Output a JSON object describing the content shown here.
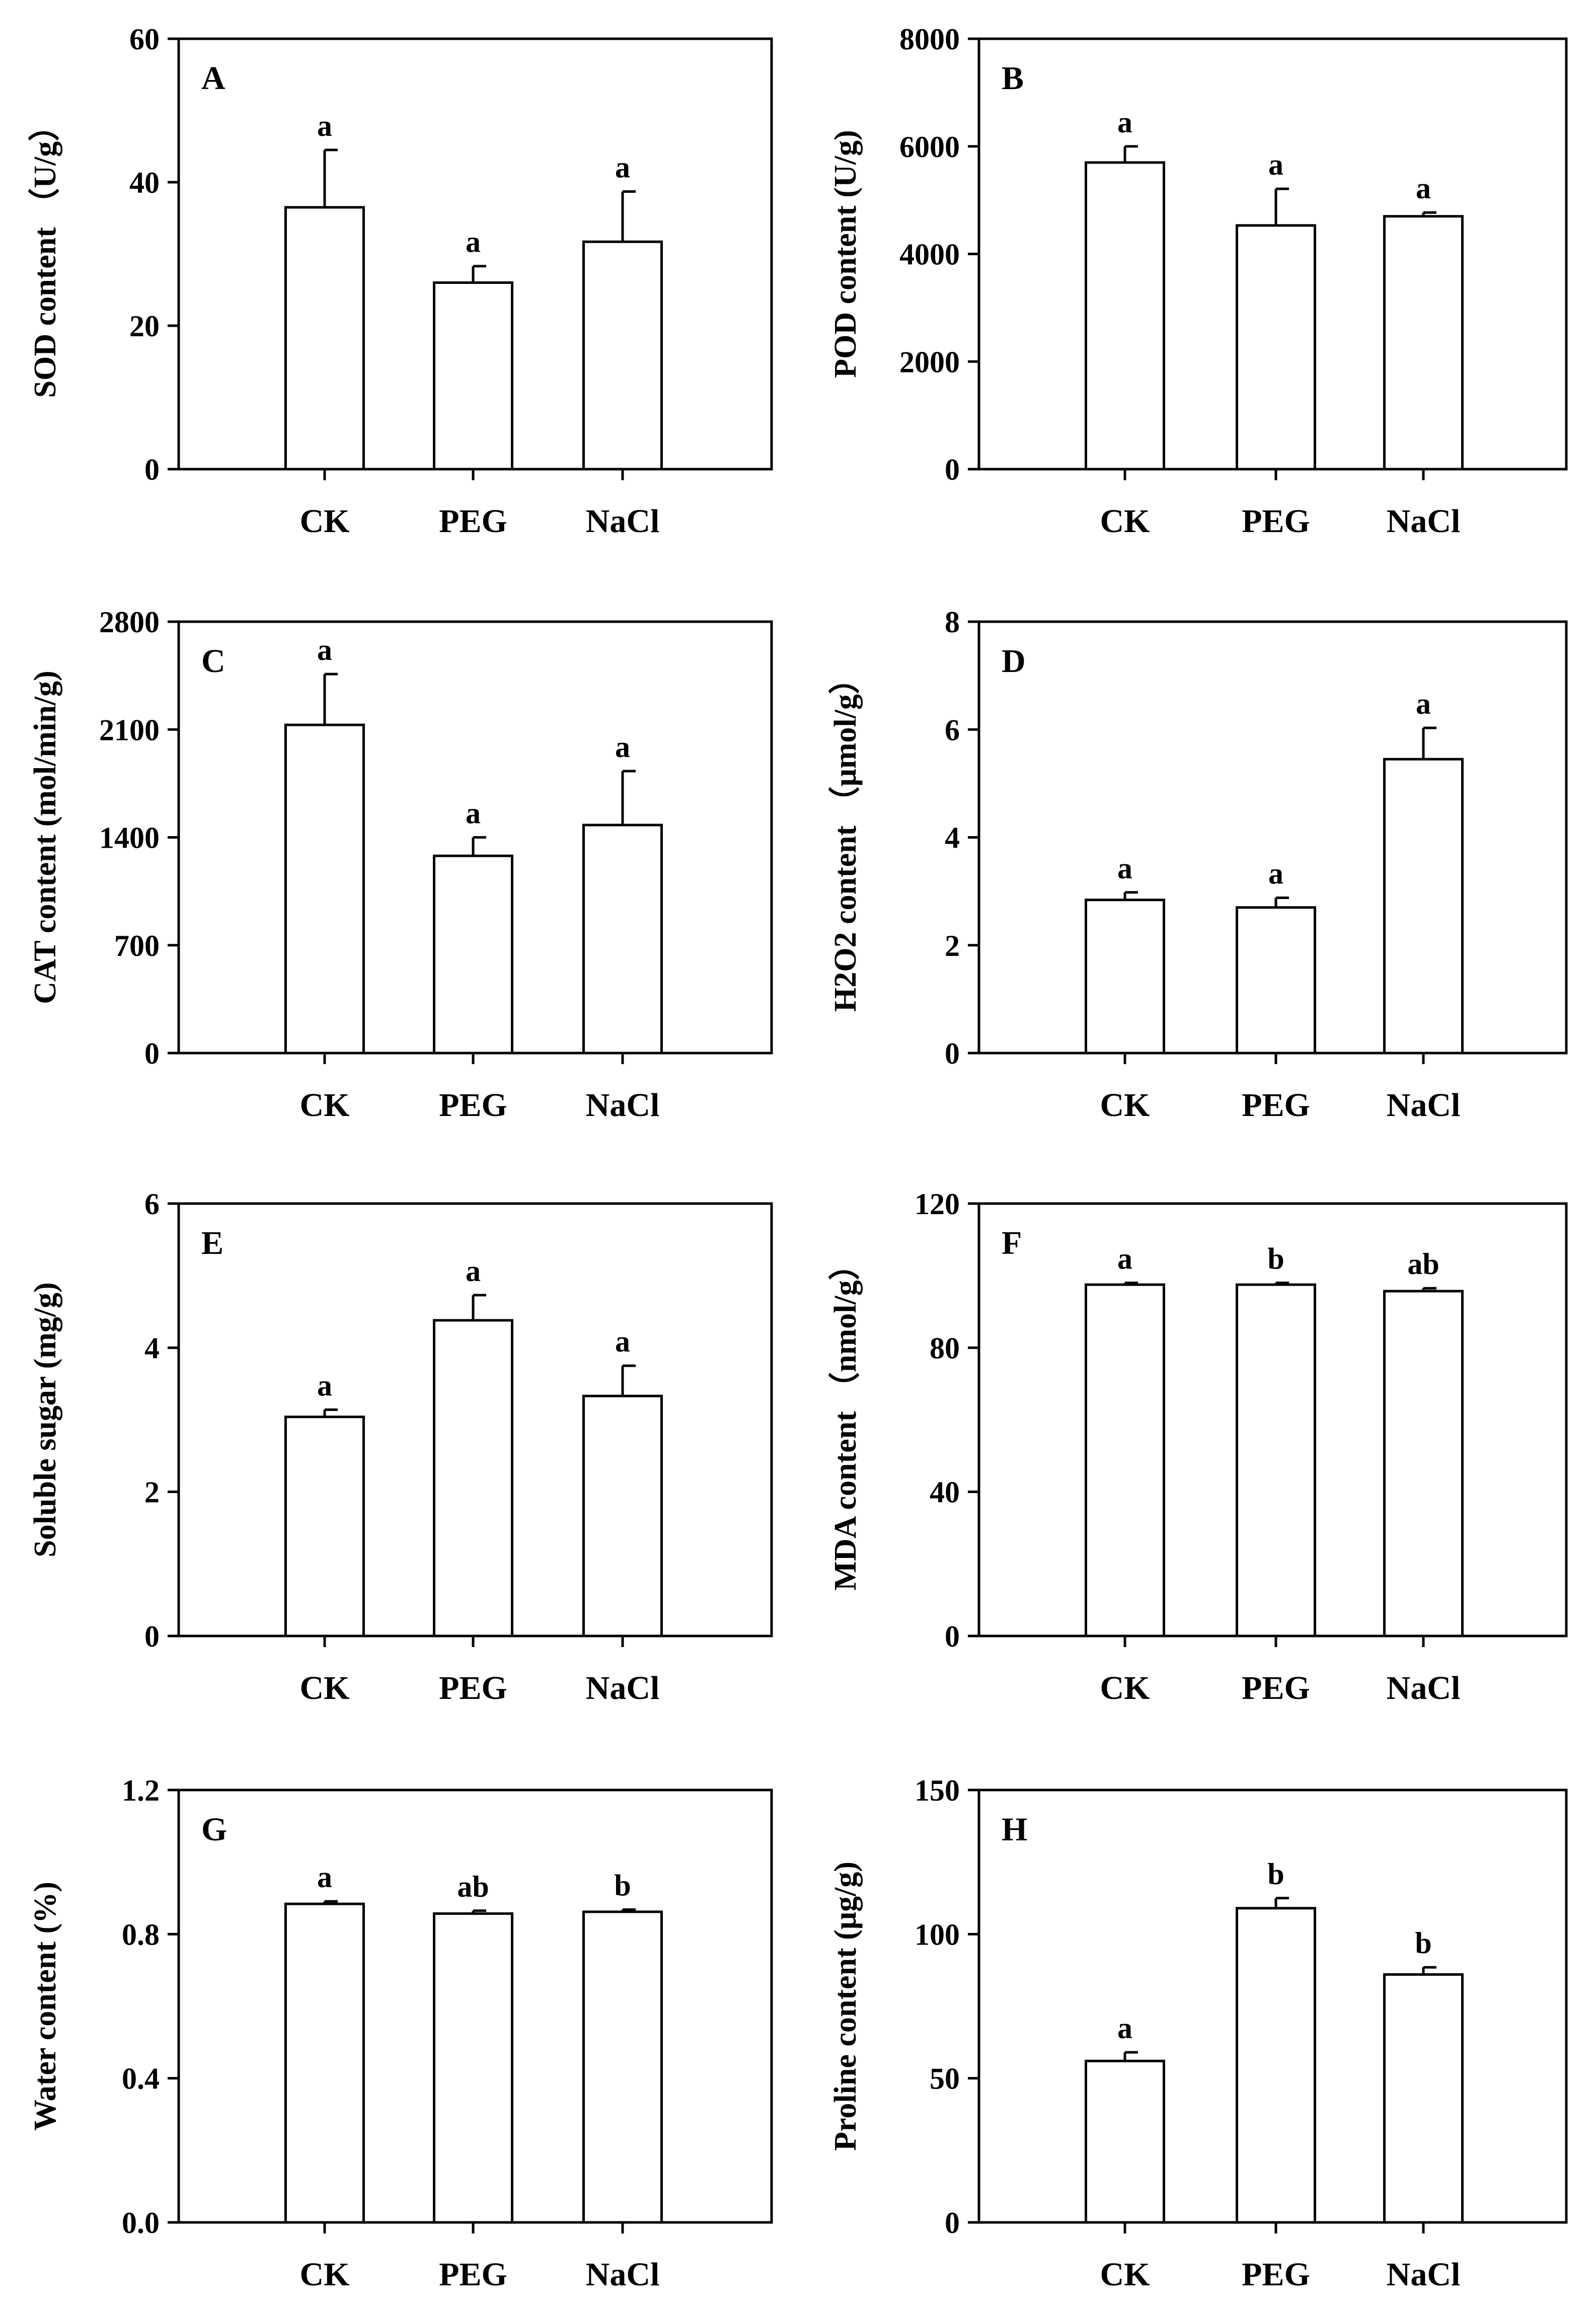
{
  "figure": {
    "name": "stress-physiology-panels"
  },
  "chart_data": [
    {
      "type": "bar",
      "panel": "A",
      "categories": [
        "CK",
        "PEG",
        "NaCl"
      ],
      "values": [
        36.5,
        26,
        31.7
      ],
      "errors": [
        8,
        2.3,
        7
      ],
      "significance": [
        "a",
        "a",
        "a"
      ],
      "ylabel": "SOD content （U/g）",
      "ylim": [
        0,
        60
      ],
      "yticks": [
        0,
        20,
        40,
        60
      ],
      "grid": false
    },
    {
      "type": "bar",
      "panel": "B",
      "categories": [
        "CK",
        "PEG",
        "NaCl"
      ],
      "values": [
        5700,
        4530,
        4700
      ],
      "errors": [
        300,
        680,
        70
      ],
      "significance": [
        "a",
        "a",
        "a"
      ],
      "ylabel": "POD content (U/g)",
      "ylim": [
        0,
        8000
      ],
      "yticks": [
        0,
        2000,
        4000,
        6000,
        8000
      ],
      "grid": false
    },
    {
      "type": "bar",
      "panel": "C",
      "categories": [
        "CK",
        "PEG",
        "NaCl"
      ],
      "values": [
        2130,
        1280,
        1480
      ],
      "errors": [
        330,
        120,
        350
      ],
      "significance": [
        "a",
        "a",
        "a"
      ],
      "ylabel": "CAT content (mol/min/g)",
      "ylim": [
        0,
        2800
      ],
      "yticks": [
        0,
        700,
        1400,
        2100,
        2800
      ],
      "grid": false
    },
    {
      "type": "bar",
      "panel": "D",
      "categories": [
        "CK",
        "PEG",
        "NaCl"
      ],
      "values": [
        2.84,
        2.7,
        5.45
      ],
      "errors": [
        0.14,
        0.18,
        0.58
      ],
      "significance": [
        "a",
        "a",
        "a"
      ],
      "ylabel": "H2O2 content （μmol/g）",
      "ylim": [
        0,
        8
      ],
      "yticks": [
        0,
        2,
        4,
        6,
        8
      ],
      "grid": false
    },
    {
      "type": "bar",
      "panel": "E",
      "categories": [
        "CK",
        "PEG",
        "NaCl"
      ],
      "values": [
        3.04,
        4.38,
        3.33
      ],
      "errors": [
        0.1,
        0.35,
        0.42
      ],
      "significance": [
        "a",
        "a",
        "a"
      ],
      "ylabel": "Soluble sugar (mg/g)",
      "ylim": [
        0,
        6
      ],
      "yticks": [
        0,
        2,
        4,
        6
      ],
      "grid": false
    },
    {
      "type": "bar",
      "panel": "F",
      "categories": [
        "CK",
        "PEG",
        "NaCl"
      ],
      "values": [
        97.5,
        97.5,
        95.7
      ],
      "errors": [
        0.5,
        0.5,
        0.8
      ],
      "significance": [
        "a",
        "b",
        "ab"
      ],
      "ylabel": "MDA content （nmol/g）",
      "ylim": [
        0,
        120
      ],
      "yticks": [
        0,
        40,
        80,
        120
      ],
      "grid": false
    },
    {
      "type": "bar",
      "panel": "G",
      "categories": [
        "CK",
        "PEG",
        "NaCl"
      ],
      "values": [
        0.884,
        0.857,
        0.862
      ],
      "errors": [
        0.007,
        0.008,
        0.006
      ],
      "significance": [
        "a",
        "ab",
        "b"
      ],
      "ylabel": "Water content (%)",
      "ylim": [
        0,
        1.2
      ],
      "yticks": [
        "0.0",
        "0.4",
        "0.8",
        "1.2"
      ],
      "grid": false
    },
    {
      "type": "bar",
      "panel": "H",
      "categories": [
        "CK",
        "PEG",
        "NaCl"
      ],
      "values": [
        56,
        109,
        86
      ],
      "errors": [
        3,
        3.5,
        2.5
      ],
      "significance": [
        "a",
        "b",
        "b"
      ],
      "ylabel": "Proline content (μg/g)",
      "ylim": [
        0,
        150
      ],
      "yticks": [
        0,
        50,
        100,
        150
      ],
      "grid": false
    }
  ]
}
